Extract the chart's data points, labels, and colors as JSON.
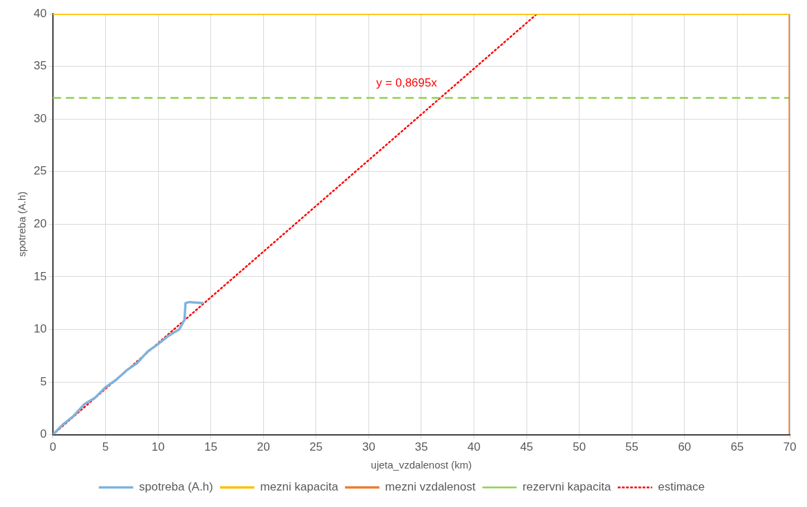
{
  "chart_data": {
    "type": "line",
    "xlabel": "ujeta_vzdalenost (km)",
    "ylabel": "spotreba (A.h)",
    "xlim": [
      0,
      70
    ],
    "xticks": [
      0,
      5,
      10,
      15,
      20,
      25,
      30,
      35,
      40,
      45,
      50,
      55,
      60,
      65,
      70
    ],
    "ylim": [
      0,
      40
    ],
    "yticks": [
      0,
      5,
      10,
      15,
      20,
      25,
      30,
      35,
      40
    ],
    "grid": true,
    "legend": "bottom",
    "marker": "none",
    "series": [
      {
        "name": "spotreba (A.h)",
        "color": "#7eb3dd",
        "x": [
          0,
          1,
          2,
          3,
          4,
          5,
          6,
          7,
          8,
          9,
          10,
          11,
          12,
          12.5,
          12.6,
          13,
          14.3
        ],
        "values": [
          0,
          1,
          1.8,
          2.9,
          3.5,
          4.5,
          5.2,
          6.1,
          6.8,
          7.9,
          8.6,
          9.4,
          10,
          10.9,
          12.5,
          12.6,
          12.5
        ]
      },
      {
        "name": "mezni kapacita",
        "color": "#ffc000",
        "x": [
          0,
          70
        ],
        "values": [
          40,
          40
        ]
      },
      {
        "name": "mezni vzdalenost",
        "color": "#ed7d31",
        "x": [
          70,
          70
        ],
        "values": [
          0,
          40
        ]
      },
      {
        "name": "rezervni kapacita",
        "color": "#92d050",
        "line_style": "dashed",
        "x": [
          0,
          70
        ],
        "values": [
          32,
          32
        ]
      },
      {
        "name": "estimace",
        "color": "#ff0000",
        "line_style": "dotted",
        "x": [
          0,
          46
        ],
        "values": [
          0,
          40
        ]
      }
    ],
    "annotations": [
      "y = 0,8695x"
    ]
  }
}
